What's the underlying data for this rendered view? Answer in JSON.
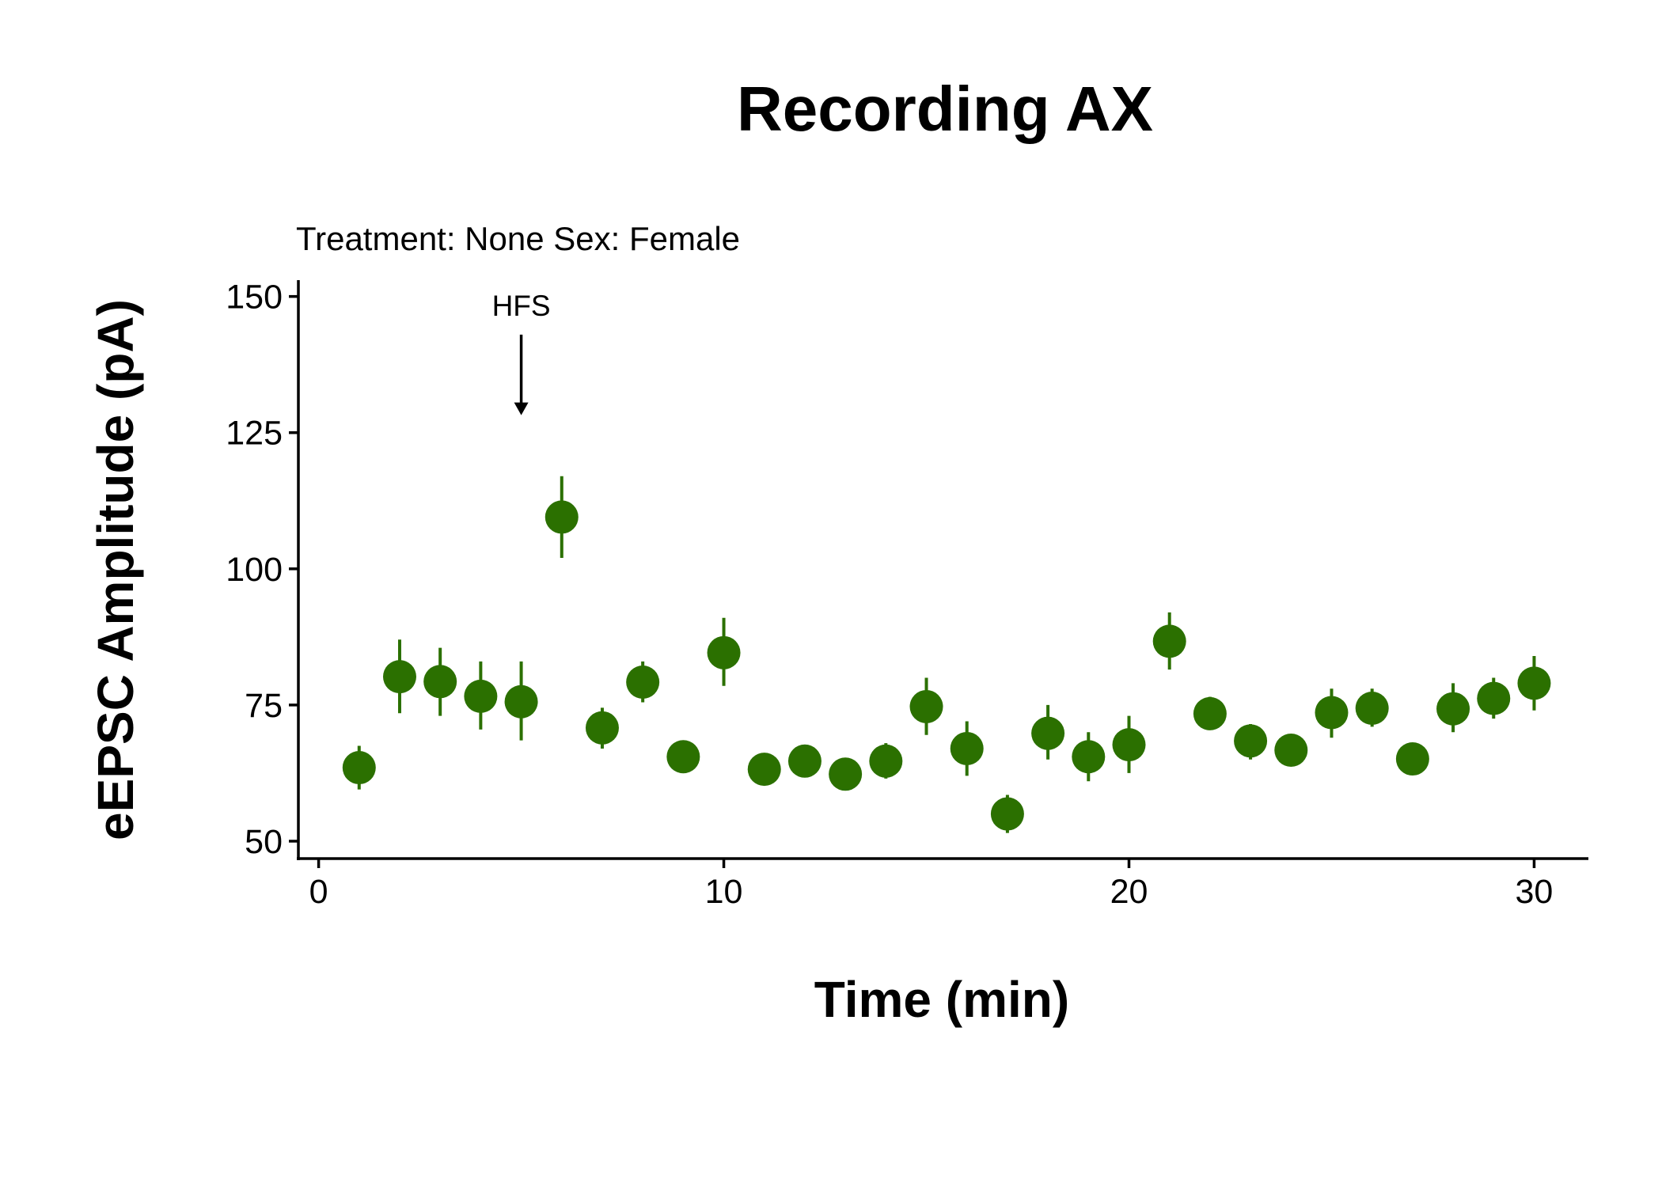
{
  "chart_data": {
    "type": "scatter",
    "title": "Recording AX",
    "subtitle": "Treatment: None  Sex: Female",
    "xlabel": "Time (min)",
    "ylabel": "eEPSC Amplitude (pA)",
    "xlim": [
      -0.5,
      31.3
    ],
    "ylim": [
      46.8,
      153
    ],
    "xticks": [
      0,
      10,
      20,
      30
    ],
    "yticks": [
      50,
      75,
      100,
      125,
      150
    ],
    "grid": false,
    "color": "#2b7000",
    "annotation": {
      "text": "HFS",
      "x": 5,
      "arrow_from_y": 143,
      "arrow_to_y": 128.5
    },
    "points": [
      {
        "x": 1,
        "y": 63.5,
        "lo": 59.5,
        "hi": 67.5
      },
      {
        "x": 2,
        "y": 80.2,
        "lo": 73.5,
        "hi": 87
      },
      {
        "x": 3,
        "y": 79.3,
        "lo": 73,
        "hi": 85.5
      },
      {
        "x": 4,
        "y": 76.6,
        "lo": 70.5,
        "hi": 83
      },
      {
        "x": 5,
        "y": 75.6,
        "lo": 68.5,
        "hi": 83
      },
      {
        "x": 6,
        "y": 109.5,
        "lo": 102,
        "hi": 117
      },
      {
        "x": 7,
        "y": 70.8,
        "lo": 67,
        "hi": 74.5
      },
      {
        "x": 8,
        "y": 79.2,
        "lo": 75.5,
        "hi": 83
      },
      {
        "x": 9,
        "y": 65.5,
        "lo": 64,
        "hi": 67
      },
      {
        "x": 10,
        "y": 84.6,
        "lo": 78.5,
        "hi": 91
      },
      {
        "x": 11,
        "y": 63.2,
        "lo": 62,
        "hi": 64.5
      },
      {
        "x": 12,
        "y": 64.7,
        "lo": 62.5,
        "hi": 67
      },
      {
        "x": 13,
        "y": 62.3,
        "lo": 61,
        "hi": 63.5
      },
      {
        "x": 14,
        "y": 64.7,
        "lo": 61.5,
        "hi": 68
      },
      {
        "x": 15,
        "y": 74.7,
        "lo": 69.5,
        "hi": 80
      },
      {
        "x": 16,
        "y": 67,
        "lo": 62,
        "hi": 72
      },
      {
        "x": 17,
        "y": 55,
        "lo": 51.5,
        "hi": 58.5
      },
      {
        "x": 18,
        "y": 69.8,
        "lo": 65,
        "hi": 75
      },
      {
        "x": 19,
        "y": 65.5,
        "lo": 61,
        "hi": 70
      },
      {
        "x": 20,
        "y": 67.7,
        "lo": 62.5,
        "hi": 73
      },
      {
        "x": 21,
        "y": 86.7,
        "lo": 81.5,
        "hi": 92
      },
      {
        "x": 22,
        "y": 73.4,
        "lo": 70.5,
        "hi": 76.5
      },
      {
        "x": 23,
        "y": 68.4,
        "lo": 65,
        "hi": 71.5
      },
      {
        "x": 24,
        "y": 66.7,
        "lo": 65.5,
        "hi": 68
      },
      {
        "x": 25,
        "y": 73.6,
        "lo": 69,
        "hi": 78
      },
      {
        "x": 26,
        "y": 74.4,
        "lo": 71,
        "hi": 78
      },
      {
        "x": 27,
        "y": 65.1,
        "lo": 64,
        "hi": 66.5
      },
      {
        "x": 28,
        "y": 74.3,
        "lo": 70,
        "hi": 79
      },
      {
        "x": 29,
        "y": 76.2,
        "lo": 72.5,
        "hi": 80
      },
      {
        "x": 30,
        "y": 79,
        "lo": 74,
        "hi": 84
      }
    ]
  }
}
